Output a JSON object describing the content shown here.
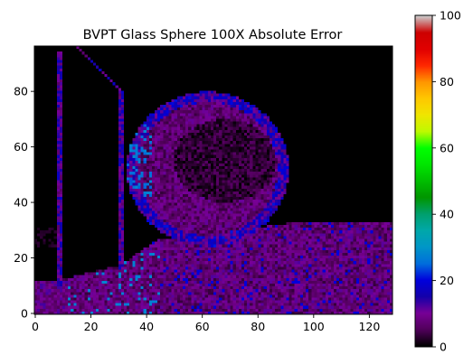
{
  "chart_data": {
    "type": "heatmap",
    "title": "BVPT Glass Sphere 100X Absolute Error",
    "xlabel": "",
    "ylabel": "",
    "x_range": [
      0,
      128
    ],
    "y_range": [
      0,
      96
    ],
    "x_ticks": [
      0,
      20,
      40,
      60,
      80,
      100,
      120
    ],
    "y_ticks": [
      0,
      20,
      40,
      60,
      80
    ],
    "colormap": "nipy_spectral",
    "color_range": [
      0,
      100
    ],
    "colorbar_ticks": [
      0,
      20,
      40,
      60,
      80,
      100
    ],
    "grid": false,
    "background_color": "#000000",
    "dominant_error_color": "#7a0096",
    "description_values": {
      "floor_noise_level": 8,
      "sphere_rim_level": 14,
      "sphere_interior_dark_level": 2,
      "wall_edge_level": 12,
      "peak_level": 30
    }
  }
}
